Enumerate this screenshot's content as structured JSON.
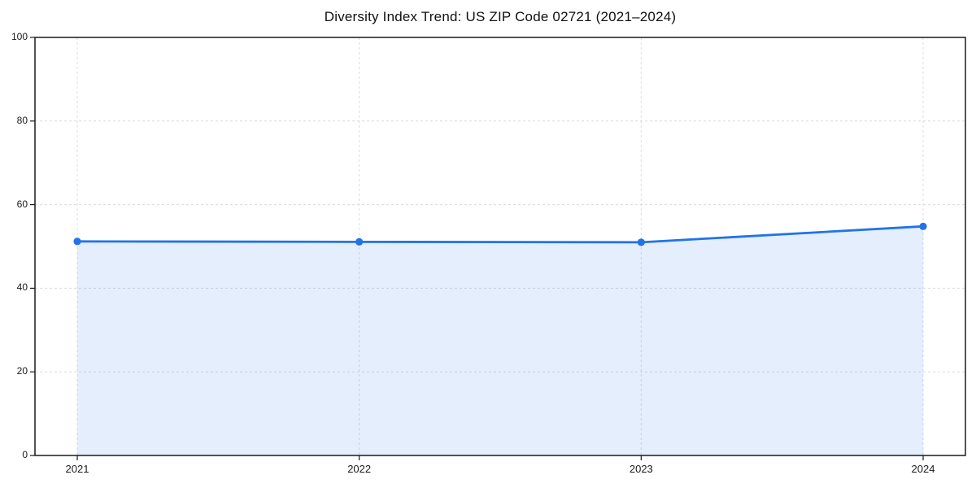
{
  "chart_data": {
    "type": "area",
    "title": "Diversity Index Trend: US ZIP Code 02721 (2021–2024)",
    "series_name": "Diversity Index",
    "x": [
      2021,
      2022,
      2023,
      2024
    ],
    "values": [
      51.2,
      51.1,
      51.0,
      54.8
    ],
    "x_tick_labels": [
      "2021",
      "2022",
      "2023",
      "2024"
    ],
    "y_ticks": [
      0,
      20,
      40,
      60,
      80,
      100
    ],
    "ylim": [
      0,
      100
    ],
    "xlabel": "",
    "ylabel": "",
    "grid": "dashed",
    "legend": "none",
    "marker": "circle",
    "line_color": "#2273e8",
    "fill_color": "rgba(34,115,232,0.12)",
    "axis_color": "#1a1a1a",
    "grid_color": "#dcdcdc",
    "background_color": "#ffffff"
  }
}
